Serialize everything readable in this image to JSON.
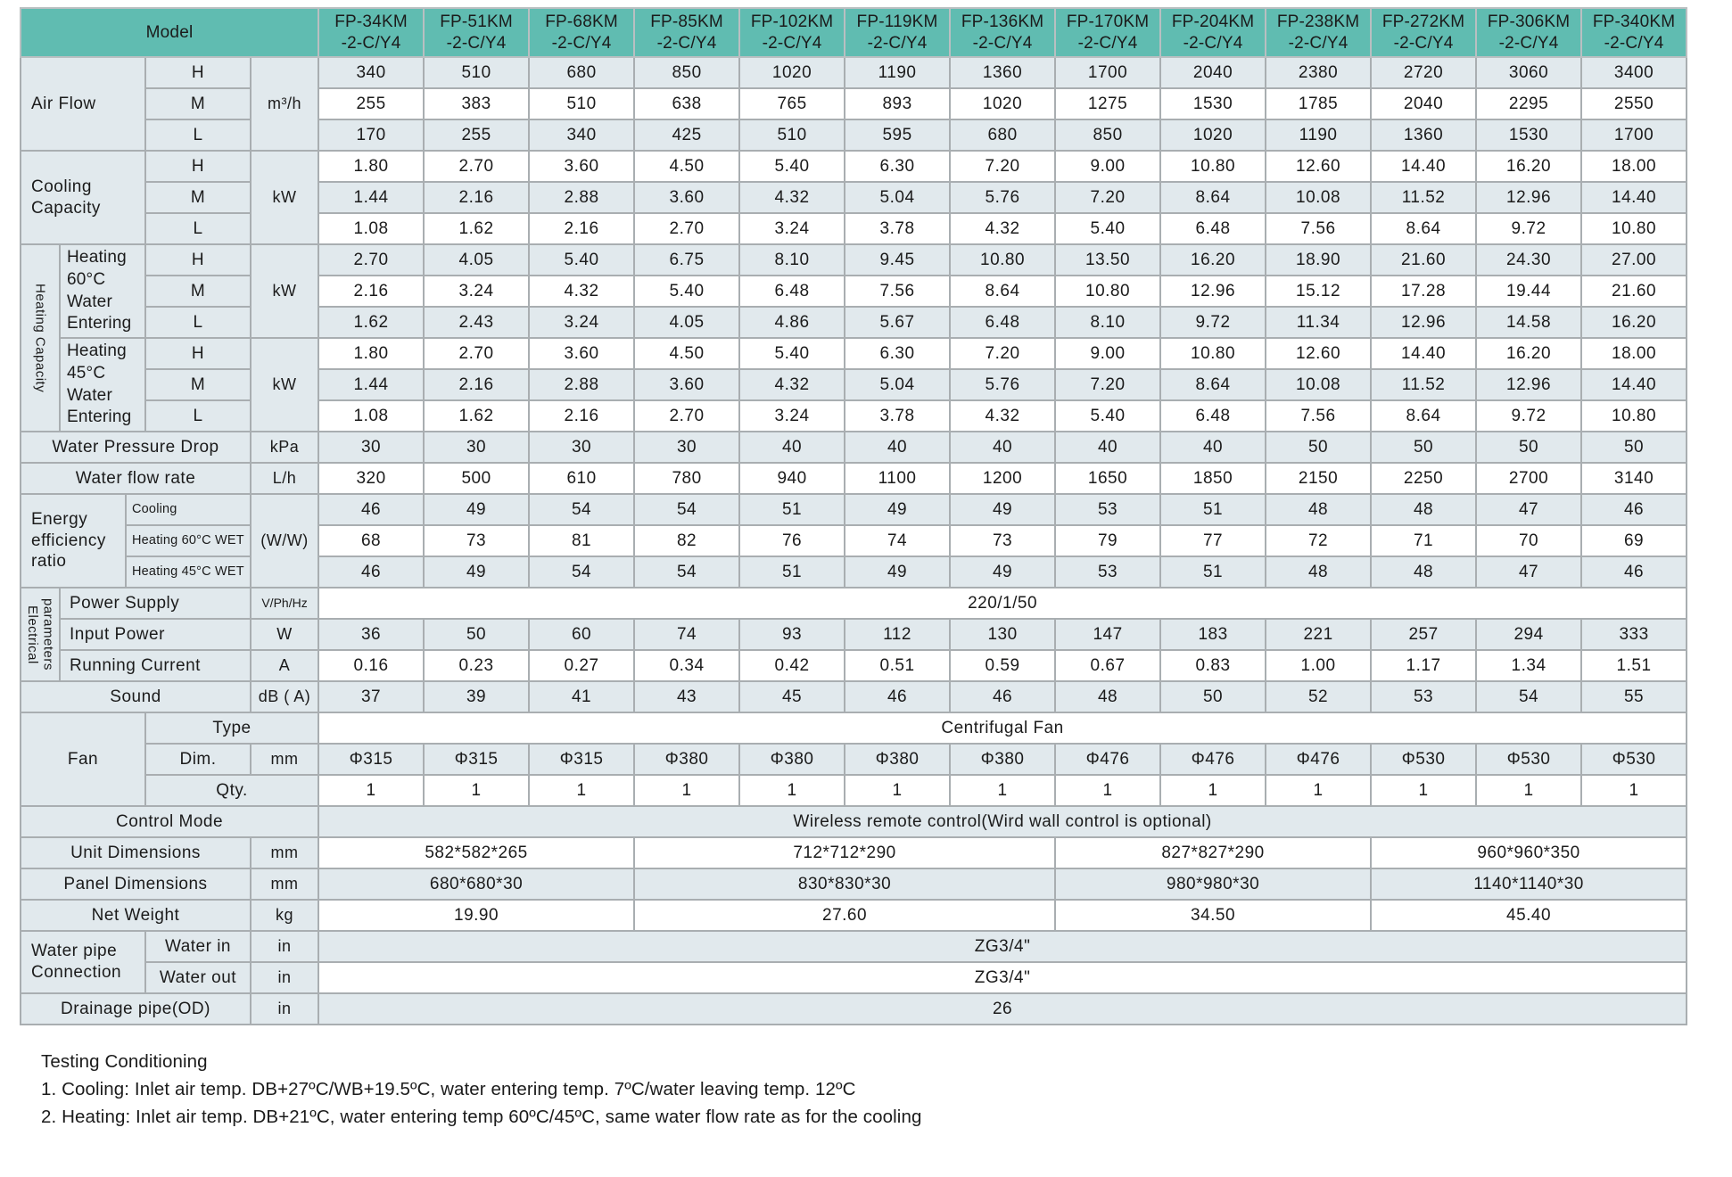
{
  "colors": {
    "header_teal": "#60bcb1",
    "row_light": "#e1e9ed",
    "row_white": "#ffffff",
    "grid_border": "#a9aeb1",
    "text": "#1b1b1b"
  },
  "header": {
    "model_label": "Model",
    "models": [
      "FP-34KM\n-2-C/Y4",
      "FP-51KM\n-2-C/Y4",
      "FP-68KM\n-2-C/Y4",
      "FP-85KM\n-2-C/Y4",
      "FP-102KM\n-2-C/Y4",
      "FP-119KM\n-2-C/Y4",
      "FP-136KM\n-2-C/Y4",
      "FP-170KM\n-2-C/Y4",
      "FP-204KM\n-2-C/Y4",
      "FP-238KM\n-2-C/Y4",
      "FP-272KM\n-2-C/Y4",
      "FP-306KM\n-2-C/Y4",
      "FP-340KM\n-2-C/Y4"
    ]
  },
  "labels": {
    "air_flow": "Air Flow",
    "cooling_capacity": "Cooling\nCapacity",
    "heating_capacity": "Heating Capacity",
    "heating_60": "Heating\n60°C\nWater\nEntering",
    "heating_45": "Heating\n45°C\nWater\nEntering",
    "h": "H",
    "m": "M",
    "l": "L",
    "water_pressure_drop": "Water Pressure Drop",
    "water_flow_rate": "Water flow rate",
    "eer": "Energy\nefficiency\nratio",
    "eer_cooling": "Cooling",
    "eer_heating60": "Heating 60°C WET",
    "eer_heating45": "Heating 45°C WET",
    "electrical": "Electrical\nparameters",
    "power_supply": "Power Supply",
    "input_power": "Input Power",
    "running_current": "Running Current",
    "sound": "Sound",
    "fan": "Fan",
    "fan_type": "Type",
    "fan_dim": "Dim.",
    "fan_qty": "Qty.",
    "control_mode": "Control Mode",
    "unit_dimensions": "Unit Dimensions",
    "panel_dimensions": "Panel Dimensions",
    "net_weight": "Net Weight",
    "water_pipe": "Water pipe\nConnection",
    "water_in": "Water in",
    "water_out": "Water out",
    "drainage": "Drainage pipe(OD)"
  },
  "units": {
    "air_flow": "m³/h",
    "cooling": "kW",
    "heating60": "kW",
    "heating45": "kW",
    "wpd": "kPa",
    "wfr": "L/h",
    "eer": "(W/W)",
    "power_supply": "V/Ph/Hz",
    "input_power": "W",
    "running_current": "A",
    "sound": "dB ( A)",
    "fan_dim": "mm",
    "unit_dim": "mm",
    "panel_dim": "mm",
    "net_weight": "kg",
    "water_in": "in",
    "water_out": "in",
    "drainage": "in"
  },
  "values": {
    "airflow_h": [
      "340",
      "510",
      "680",
      "850",
      "1020",
      "1190",
      "1360",
      "1700",
      "2040",
      "2380",
      "2720",
      "3060",
      "3400"
    ],
    "airflow_m": [
      "255",
      "383",
      "510",
      "638",
      "765",
      "893",
      "1020",
      "1275",
      "1530",
      "1785",
      "2040",
      "2295",
      "2550"
    ],
    "airflow_l": [
      "170",
      "255",
      "340",
      "425",
      "510",
      "595",
      "680",
      "850",
      "1020",
      "1190",
      "1360",
      "1530",
      "1700"
    ],
    "cooling_h": [
      "1.80",
      "2.70",
      "3.60",
      "4.50",
      "5.40",
      "6.30",
      "7.20",
      "9.00",
      "10.80",
      "12.60",
      "14.40",
      "16.20",
      "18.00"
    ],
    "cooling_m": [
      "1.44",
      "2.16",
      "2.88",
      "3.60",
      "4.32",
      "5.04",
      "5.76",
      "7.20",
      "8.64",
      "10.08",
      "11.52",
      "12.96",
      "14.40"
    ],
    "cooling_l": [
      "1.08",
      "1.62",
      "2.16",
      "2.70",
      "3.24",
      "3.78",
      "4.32",
      "5.40",
      "6.48",
      "7.56",
      "8.64",
      "9.72",
      "10.80"
    ],
    "heating60_h": [
      "2.70",
      "4.05",
      "5.40",
      "6.75",
      "8.10",
      "9.45",
      "10.80",
      "13.50",
      "16.20",
      "18.90",
      "21.60",
      "24.30",
      "27.00"
    ],
    "heating60_m": [
      "2.16",
      "3.24",
      "4.32",
      "5.40",
      "6.48",
      "7.56",
      "8.64",
      "10.80",
      "12.96",
      "15.12",
      "17.28",
      "19.44",
      "21.60"
    ],
    "heating60_l": [
      "1.62",
      "2.43",
      "3.24",
      "4.05",
      "4.86",
      "5.67",
      "6.48",
      "8.10",
      "9.72",
      "11.34",
      "12.96",
      "14.58",
      "16.20"
    ],
    "heating45_h": [
      "1.80",
      "2.70",
      "3.60",
      "4.50",
      "5.40",
      "6.30",
      "7.20",
      "9.00",
      "10.80",
      "12.60",
      "14.40",
      "16.20",
      "18.00"
    ],
    "heating45_m": [
      "1.44",
      "2.16",
      "2.88",
      "3.60",
      "4.32",
      "5.04",
      "5.76",
      "7.20",
      "8.64",
      "10.08",
      "11.52",
      "12.96",
      "14.40"
    ],
    "heating45_l": [
      "1.08",
      "1.62",
      "2.16",
      "2.70",
      "3.24",
      "3.78",
      "4.32",
      "5.40",
      "6.48",
      "7.56",
      "8.64",
      "9.72",
      "10.80"
    ],
    "wpd": [
      "30",
      "30",
      "30",
      "30",
      "40",
      "40",
      "40",
      "40",
      "40",
      "50",
      "50",
      "50",
      "50"
    ],
    "wfr": [
      "320",
      "500",
      "610",
      "780",
      "940",
      "1100",
      "1200",
      "1650",
      "1850",
      "2150",
      "2250",
      "2700",
      "3140"
    ],
    "eer_cooling": [
      "46",
      "49",
      "54",
      "54",
      "51",
      "49",
      "49",
      "53",
      "51",
      "48",
      "48",
      "47",
      "46"
    ],
    "eer_heating60": [
      "68",
      "73",
      "81",
      "82",
      "76",
      "74",
      "73",
      "79",
      "77",
      "72",
      "71",
      "70",
      "69"
    ],
    "eer_heating45": [
      "46",
      "49",
      "54",
      "54",
      "51",
      "49",
      "49",
      "53",
      "51",
      "48",
      "48",
      "47",
      "46"
    ],
    "power_supply": "220/1/50",
    "input_power": [
      "36",
      "50",
      "60",
      "74",
      "93",
      "112",
      "130",
      "147",
      "183",
      "221",
      "257",
      "294",
      "333"
    ],
    "running_current": [
      "0.16",
      "0.23",
      "0.27",
      "0.34",
      "0.42",
      "0.51",
      "0.59",
      "0.67",
      "0.83",
      "1.00",
      "1.17",
      "1.34",
      "1.51"
    ],
    "sound": [
      "37",
      "39",
      "41",
      "43",
      "45",
      "46",
      "46",
      "48",
      "50",
      "52",
      "53",
      "54",
      "55"
    ],
    "fan_type": "Centrifugal Fan",
    "fan_dim": [
      "Φ315",
      "Φ315",
      "Φ315",
      "Φ380",
      "Φ380",
      "Φ380",
      "Φ380",
      "Φ476",
      "Φ476",
      "Φ476",
      "Φ530",
      "Φ530",
      "Φ530"
    ],
    "fan_qty": [
      "1",
      "1",
      "1",
      "1",
      "1",
      "1",
      "1",
      "1",
      "1",
      "1",
      "1",
      "1",
      "1"
    ],
    "control_mode": "Wireless remote control(Wird wall control is optional)",
    "unit_dimensions": [
      "582*582*265",
      "712*712*290",
      "827*827*290",
      "960*960*350"
    ],
    "panel_dimensions": [
      "680*680*30",
      "830*830*30",
      "980*980*30",
      "1140*1140*30"
    ],
    "net_weight": [
      "19.90",
      "27.60",
      "34.50",
      "45.40"
    ],
    "water_in": "ZG3/4\"",
    "water_out": "ZG3/4\"",
    "drainage": "26"
  },
  "footer": {
    "title": "Testing Conditioning",
    "note1": "1. Cooling: Inlet air temp. DB+27ºC/WB+19.5ºC, water entering temp. 7ºC/water leaving temp. 12ºC",
    "note2": "2. Heating: Inlet air temp. DB+21ºC, water entering temp 60ºC/45ºC, same water flow rate as for the cooling"
  }
}
